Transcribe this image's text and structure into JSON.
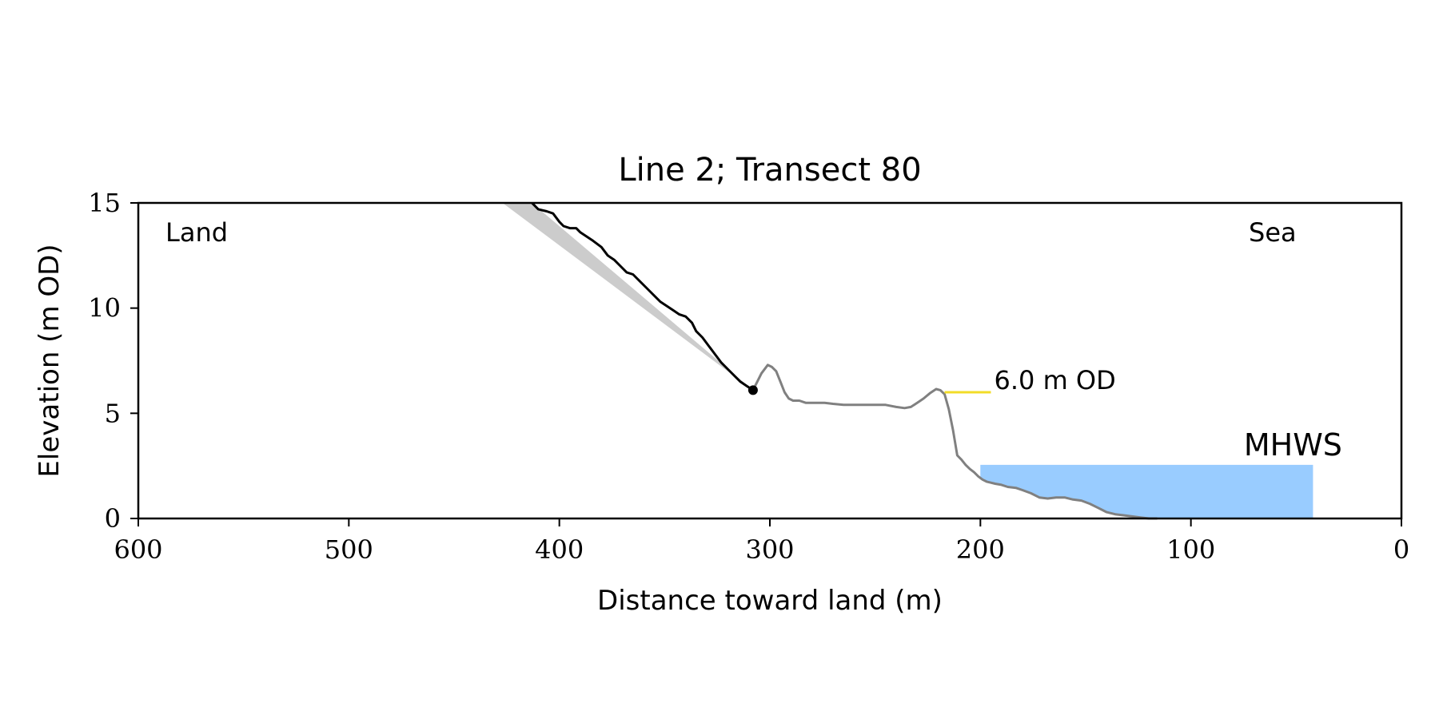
{
  "chart_data": {
    "type": "line",
    "title": "Line 2; Transect 80",
    "xlabel": "Distance toward land (m)",
    "ylabel": "Elevation (m OD)",
    "xlim": [
      600,
      0
    ],
    "ylim": [
      0,
      15
    ],
    "x_reversed": true,
    "grid": false,
    "x_ticks": [
      600,
      500,
      400,
      300,
      200,
      100,
      0
    ],
    "x_tick_labels": [
      "600",
      "500",
      "400",
      "300",
      "200",
      "100",
      "0"
    ],
    "y_ticks": [
      0,
      5,
      10,
      15
    ],
    "y_tick_labels": [
      "0",
      "5",
      "10",
      "15"
    ],
    "annotations": {
      "land": "Land",
      "sea": "Sea",
      "od_label": "6.0 m OD",
      "mhws_label": "MHWS"
    },
    "colors": {
      "profile": "#808080",
      "cliff": "#000000",
      "wedge": "#cccccc",
      "od_line": "#f2dc28",
      "mhws_fill": "#99ccff",
      "mhws_text": "#6699cc"
    },
    "od_level": {
      "y": 6.0,
      "x_range": [
        217,
        195
      ]
    },
    "mhws": {
      "y": 2.55,
      "x_range": [
        200,
        42
      ]
    },
    "wedge": [
      [
        427,
        15
      ],
      [
        413,
        15
      ],
      [
        308,
        6.1
      ]
    ],
    "cliff_point": {
      "x": 308,
      "y": 6.1
    },
    "series": [
      {
        "role": "cliff",
        "x": [
          413,
          410,
          406,
          403,
          400,
          398,
          395,
          392,
          390,
          387,
          384,
          380,
          377,
          374,
          371,
          368,
          365,
          362,
          358,
          355,
          352,
          349,
          346,
          343,
          340,
          337,
          335,
          332,
          329,
          326,
          323,
          320,
          317,
          314,
          311,
          308
        ],
        "y": [
          15,
          14.7,
          14.6,
          14.5,
          14.1,
          13.9,
          13.8,
          13.8,
          13.6,
          13.4,
          13.2,
          12.9,
          12.5,
          12.3,
          12.0,
          11.7,
          11.6,
          11.3,
          10.9,
          10.6,
          10.3,
          10.1,
          9.9,
          9.7,
          9.6,
          9.3,
          8.9,
          8.6,
          8.2,
          7.8,
          7.4,
          7.1,
          6.8,
          6.5,
          6.3,
          6.1
        ]
      },
      {
        "role": "profile",
        "x": [
          308,
          304,
          301,
          299,
          297,
          295,
          293,
          291,
          289,
          286,
          283,
          280,
          277,
          274,
          270,
          265,
          260,
          255,
          250,
          245,
          240,
          236,
          233,
          230,
          227,
          224,
          221,
          219,
          217,
          215,
          213,
          211,
          209,
          207,
          205,
          203,
          201,
          199,
          197,
          195,
          193,
          190,
          187,
          183,
          180,
          176,
          172,
          168,
          164,
          160,
          156,
          152,
          148,
          144,
          140,
          136,
          132,
          128,
          124,
          120,
          116
        ],
        "y": [
          6.1,
          6.9,
          7.3,
          7.2,
          7.0,
          6.5,
          6.0,
          5.7,
          5.6,
          5.6,
          5.5,
          5.5,
          5.5,
          5.5,
          5.45,
          5.4,
          5.4,
          5.4,
          5.4,
          5.4,
          5.3,
          5.25,
          5.3,
          5.5,
          5.7,
          5.95,
          6.15,
          6.1,
          5.9,
          5.2,
          4.2,
          3.0,
          2.8,
          2.55,
          2.35,
          2.2,
          2.0,
          1.85,
          1.75,
          1.7,
          1.65,
          1.6,
          1.5,
          1.45,
          1.35,
          1.2,
          1.0,
          0.95,
          1.0,
          1.0,
          0.9,
          0.85,
          0.7,
          0.5,
          0.3,
          0.2,
          0.15,
          0.1,
          0.05,
          0.0,
          0.0
        ]
      }
    ]
  }
}
